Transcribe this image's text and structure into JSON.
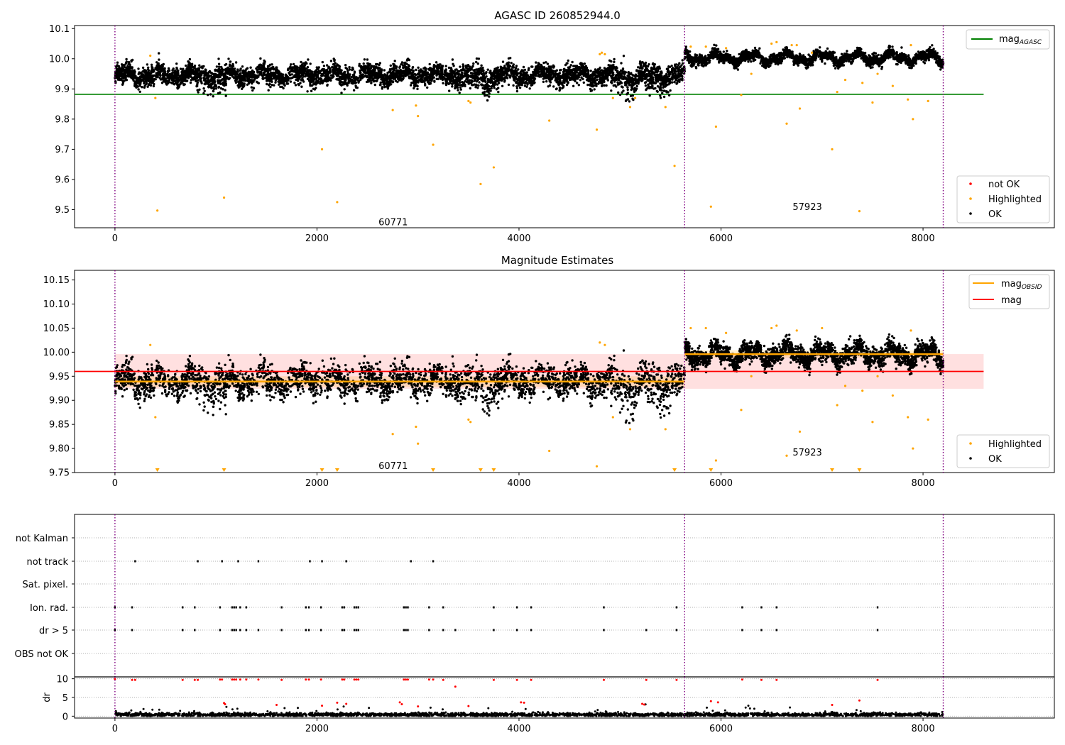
{
  "chart_data": [
    {
      "type": "scatter",
      "title": "AGASC ID 260852944.0",
      "xlim": [
        -400,
        9300
      ],
      "ylim": [
        9.44,
        10.11
      ],
      "xticks": [
        0,
        2000,
        4000,
        6000,
        8000
      ],
      "yticks": [
        9.5,
        9.6,
        9.7,
        9.8,
        9.9,
        10.0,
        10.1
      ],
      "ytick_labels": [
        "9.5",
        "9.6",
        "9.7",
        "9.8",
        "9.9",
        "10.0",
        "10.1"
      ],
      "obs_boundaries": [
        0,
        5640,
        8200
      ],
      "obs_labels": [
        {
          "text": "60771",
          "x": 2820,
          "y": 9.46
        },
        {
          "text": "57923",
          "x": 6920,
          "y": 9.51
        }
      ],
      "reference_lines": [
        {
          "name": "mag",
          "subscript": "AGASC",
          "value": 9.882,
          "x_range": [
            -400,
            8600
          ],
          "color": "#008000"
        }
      ],
      "ok_bands": [
        {
          "x_range": [
            0,
            5640
          ],
          "mean": 9.946,
          "spread": 0.022,
          "dip_regions": [
            [
              800,
              1100
            ],
            [
              3400,
              3800
            ],
            [
              4900,
              5500
            ]
          ]
        },
        {
          "x_range": [
            5640,
            8200
          ],
          "mean": 10.003,
          "spread": 0.012,
          "dip_regions": []
        }
      ],
      "highlighted": [
        [
          350,
          10.01
        ],
        [
          400,
          9.87
        ],
        [
          420,
          9.497
        ],
        [
          1080,
          9.54
        ],
        [
          2050,
          9.7
        ],
        [
          2200,
          9.525
        ],
        [
          2750,
          9.83
        ],
        [
          2980,
          9.845
        ],
        [
          3000,
          9.81
        ],
        [
          3150,
          9.715
        ],
        [
          3500,
          9.86
        ],
        [
          3520,
          9.855
        ],
        [
          3620,
          9.585
        ],
        [
          3750,
          9.64
        ],
        [
          4300,
          9.795
        ],
        [
          4770,
          9.765
        ],
        [
          4800,
          10.015
        ],
        [
          4820,
          10.02
        ],
        [
          4850,
          10.015
        ],
        [
          4930,
          9.87
        ],
        [
          5100,
          9.84
        ],
        [
          5150,
          9.87
        ],
        [
          5450,
          9.84
        ],
        [
          5540,
          9.645
        ],
        [
          5700,
          10.04
        ],
        [
          5850,
          10.04
        ],
        [
          5900,
          9.51
        ],
        [
          5950,
          9.775
        ],
        [
          6050,
          10.035
        ],
        [
          6200,
          9.88
        ],
        [
          6300,
          9.95
        ],
        [
          6500,
          10.05
        ],
        [
          6550,
          10.055
        ],
        [
          6650,
          9.785
        ],
        [
          6700,
          10.045
        ],
        [
          6750,
          10.045
        ],
        [
          6780,
          9.835
        ],
        [
          6900,
          10.02
        ],
        [
          7100,
          9.7
        ],
        [
          7150,
          9.89
        ],
        [
          7230,
          9.93
        ],
        [
          7370,
          9.495
        ],
        [
          7400,
          9.92
        ],
        [
          7500,
          9.855
        ],
        [
          7550,
          9.95
        ],
        [
          7700,
          9.91
        ],
        [
          7850,
          9.865
        ],
        [
          7880,
          10.045
        ],
        [
          7900,
          9.8
        ],
        [
          8050,
          9.86
        ]
      ],
      "not_ok": [],
      "legend": [
        {
          "label": "not OK",
          "color": "#ff0000"
        },
        {
          "label": "Highlighted",
          "color": "#ffa500"
        },
        {
          "label": "OK",
          "color": "#000000"
        }
      ]
    },
    {
      "type": "scatter",
      "title": "Magnitude Estimates",
      "xlim": [
        -400,
        9300
      ],
      "ylim": [
        9.75,
        10.17
      ],
      "xticks": [
        0,
        2000,
        4000,
        6000,
        8000
      ],
      "yticks": [
        9.75,
        9.8,
        9.85,
        9.9,
        9.95,
        10.0,
        10.05,
        10.1,
        10.15
      ],
      "ytick_labels": [
        "9.75",
        "9.80",
        "9.85",
        "9.90",
        "9.95",
        "10.00",
        "10.05",
        "10.10",
        "10.15"
      ],
      "obs_boundaries": [
        0,
        5640,
        8200
      ],
      "obs_labels": [
        {
          "text": "60771",
          "x": 2820,
          "y": 9.765
        },
        {
          "text": "57923",
          "x": 6920,
          "y": 9.793
        }
      ],
      "mag_obsid": [
        {
          "x_range": [
            0,
            5640
          ],
          "value": 9.939,
          "band": [
            9.928,
            9.95
          ]
        },
        {
          "x_range": [
            5640,
            8200
          ],
          "value": 9.996,
          "band": [
            9.988,
            10.004
          ]
        }
      ],
      "mag": {
        "value": 9.96,
        "band": [
          9.924,
          9.996
        ],
        "x_range": [
          -400,
          8600
        ]
      },
      "ok_bands": [
        {
          "x_range": [
            0,
            5640
          ],
          "mean": 9.94,
          "spread": 0.022,
          "dip_regions": [
            [
              800,
              1100
            ],
            [
              3400,
              3800
            ],
            [
              4900,
              5500
            ]
          ]
        },
        {
          "x_range": [
            5640,
            8200
          ],
          "mean": 9.995,
          "spread": 0.014,
          "dip_regions": []
        }
      ],
      "highlighted": [
        [
          350,
          10.015
        ],
        [
          400,
          9.865
        ],
        [
          2750,
          9.83
        ],
        [
          2980,
          9.845
        ],
        [
          3000,
          9.81
        ],
        [
          3500,
          9.86
        ],
        [
          3520,
          9.855
        ],
        [
          4300,
          9.795
        ],
        [
          4770,
          9.763
        ],
        [
          4800,
          10.02
        ],
        [
          4850,
          10.015
        ],
        [
          4930,
          9.865
        ],
        [
          5100,
          9.84
        ],
        [
          5450,
          9.84
        ],
        [
          5700,
          10.05
        ],
        [
          5850,
          10.05
        ],
        [
          5950,
          9.775
        ],
        [
          6050,
          10.04
        ],
        [
          6200,
          9.88
        ],
        [
          6300,
          9.95
        ],
        [
          6500,
          10.05
        ],
        [
          6550,
          10.055
        ],
        [
          6650,
          9.785
        ],
        [
          6750,
          10.045
        ],
        [
          6780,
          9.835
        ],
        [
          7000,
          10.05
        ],
        [
          7150,
          9.89
        ],
        [
          7230,
          9.93
        ],
        [
          7400,
          9.92
        ],
        [
          7500,
          9.855
        ],
        [
          7550,
          9.95
        ],
        [
          7700,
          9.91
        ],
        [
          7850,
          9.865
        ],
        [
          7880,
          10.045
        ],
        [
          7900,
          9.8
        ],
        [
          8050,
          9.86
        ]
      ],
      "clipped_low": [
        420,
        1080,
        2050,
        2200,
        3150,
        3620,
        3750,
        5540,
        5900,
        7100,
        7370
      ],
      "legend_lines": [
        {
          "label": "mag",
          "subscript": "OBSID",
          "color": "#ffa500"
        },
        {
          "label": "mag",
          "subscript": "",
          "color": "#ff0000"
        }
      ],
      "legend": [
        {
          "label": "Highlighted",
          "color": "#ffa500"
        },
        {
          "label": "OK",
          "color": "#000000"
        }
      ]
    },
    {
      "type": "scatter",
      "title": "",
      "xlim": [
        -400,
        9300
      ],
      "obs_boundaries": [
        0,
        5640,
        8200
      ],
      "flag_rows": [
        "not Kalman",
        "not track",
        "Sat. pixel.",
        "Ion. rad.",
        "dr > 5",
        "OBS not OK"
      ],
      "flags": {
        "not track": [
          200,
          820,
          1060,
          1220,
          1420,
          1930,
          2050,
          2290,
          2930,
          3150
        ],
        "Ion. rad.": [
          0,
          170,
          670,
          790,
          1040,
          1160,
          1180,
          1200,
          1240,
          1300,
          1650,
          1890,
          1920,
          2040,
          2250,
          2270,
          2370,
          2390,
          2410,
          2860,
          2880,
          2900,
          3110,
          3250,
          3750,
          3980,
          4120,
          4840,
          5560,
          6210,
          6400,
          6550,
          7550
        ],
        "dr > 5": [
          0,
          170,
          670,
          790,
          1040,
          1160,
          1180,
          1200,
          1240,
          1300,
          1420,
          1650,
          1890,
          1920,
          2040,
          2250,
          2270,
          2370,
          2390,
          2410,
          2860,
          2880,
          2900,
          3110,
          3250,
          3370,
          3750,
          3980,
          4120,
          4840,
          5260,
          5560,
          6210,
          6400,
          6550,
          7550
        ]
      },
      "dr_panel": {
        "ylabel": "dr",
        "ylim": [
          -0.5,
          10.5
        ],
        "yticks": [
          0,
          5,
          10
        ],
        "red_points": [
          [
            0,
            9.9
          ],
          [
            170,
            9.7
          ],
          [
            200,
            9.7
          ],
          [
            670,
            9.7
          ],
          [
            790,
            9.7
          ],
          [
            820,
            9.7
          ],
          [
            1040,
            9.8
          ],
          [
            1060,
            9.8
          ],
          [
            1160,
            9.8
          ],
          [
            1180,
            9.8
          ],
          [
            1200,
            9.8
          ],
          [
            1240,
            9.8
          ],
          [
            1300,
            9.8
          ],
          [
            1420,
            9.8
          ],
          [
            1650,
            9.7
          ],
          [
            1890,
            9.8
          ],
          [
            1920,
            9.8
          ],
          [
            2040,
            9.8
          ],
          [
            2250,
            9.8
          ],
          [
            2270,
            9.8
          ],
          [
            2370,
            9.8
          ],
          [
            2390,
            9.8
          ],
          [
            2410,
            9.8
          ],
          [
            2860,
            9.8
          ],
          [
            2880,
            9.8
          ],
          [
            2900,
            9.8
          ],
          [
            3110,
            9.8
          ],
          [
            3150,
            9.8
          ],
          [
            3250,
            9.7
          ],
          [
            3370,
            7.9
          ],
          [
            3750,
            9.7
          ],
          [
            3980,
            9.7
          ],
          [
            4120,
            9.7
          ],
          [
            4840,
            9.7
          ],
          [
            5260,
            9.7
          ],
          [
            5560,
            9.7
          ],
          [
            6210,
            9.8
          ],
          [
            6400,
            9.7
          ],
          [
            6550,
            9.7
          ],
          [
            7550,
            9.7
          ],
          [
            1080,
            3.5
          ],
          [
            1090,
            3.2
          ],
          [
            1600,
            3.0
          ],
          [
            2050,
            2.8
          ],
          [
            2200,
            3.6
          ],
          [
            2290,
            3.3
          ],
          [
            2820,
            3.7
          ],
          [
            2840,
            3.2
          ],
          [
            3000,
            2.6
          ],
          [
            3500,
            2.7
          ],
          [
            4020,
            3.7
          ],
          [
            4050,
            3.6
          ],
          [
            5220,
            3.3
          ],
          [
            5240,
            3.1
          ],
          [
            5900,
            4.0
          ],
          [
            5970,
            3.7
          ],
          [
            7100,
            3.0
          ],
          [
            7370,
            4.2
          ]
        ]
      }
    }
  ]
}
